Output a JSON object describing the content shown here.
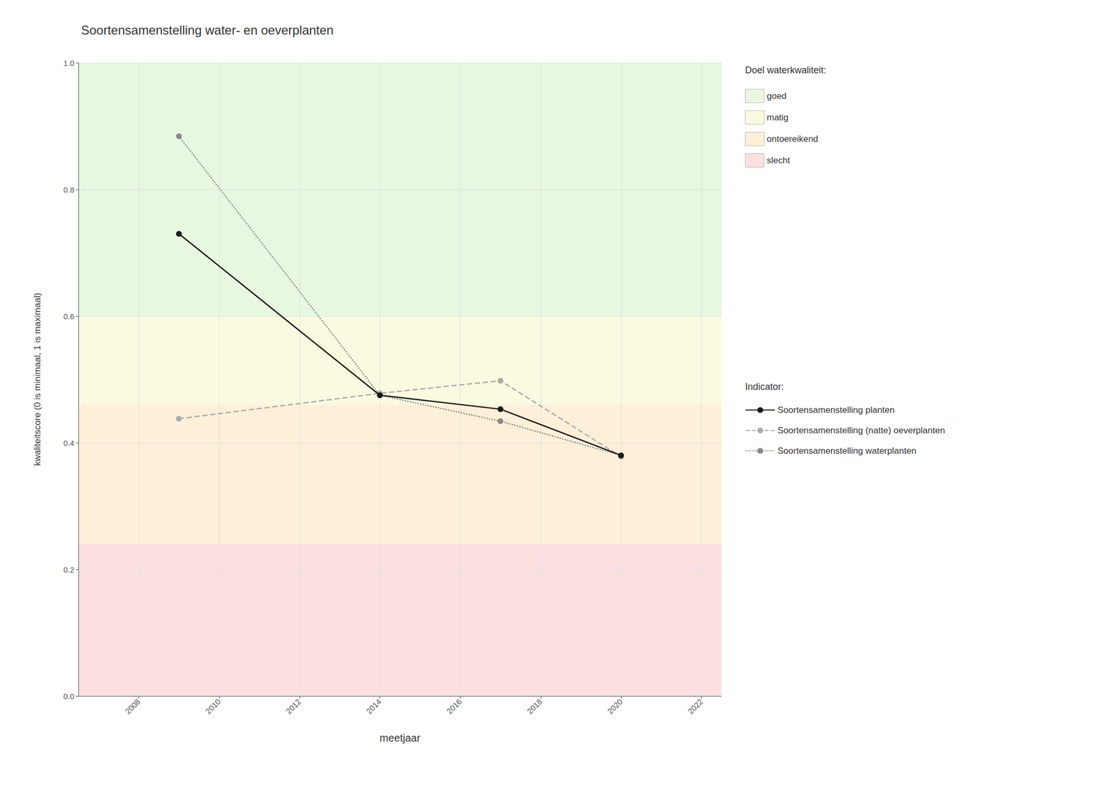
{
  "chart_data": {
    "type": "line",
    "title": "Soortensamenstelling water- en oeverplanten",
    "xlabel": "meetjaar",
    "ylabel": "kwaliteitscore (0 is minimaal, 1 is maximaal)",
    "x": [
      2009,
      2014,
      2017,
      2020
    ],
    "xlim": [
      2006.5,
      2022.5
    ],
    "xticks": [
      2008,
      2010,
      2012,
      2014,
      2016,
      2018,
      2020,
      2022
    ],
    "ylim": [
      0.0,
      1.0
    ],
    "yticks": [
      {
        "value": 0.0,
        "label": "0.0"
      },
      0.2,
      0.4,
      0.6,
      0.8,
      {
        "value": 1.0,
        "label": "1.0"
      }
    ],
    "grid": true,
    "legend": "right",
    "marker": "circle",
    "series": [
      {
        "name": "Soortensamenstelling planten",
        "color": "#1a1a1a",
        "line_style": "solid",
        "values": [
          0.73,
          0.475,
          0.453,
          0.38
        ]
      },
      {
        "name": "Soortensamenstelling (natte) oeverplanten",
        "color": "#aaaaaa",
        "line_style": "dashed",
        "values": [
          0.438,
          0.478,
          0.498,
          0.378
        ]
      },
      {
        "name": "Soortensamenstelling waterplanten",
        "color": "#888888",
        "line_style": "dotted",
        "values": [
          0.884,
          0.475,
          0.434,
          0.38
        ]
      }
    ],
    "bands_title": "Doel waterkwaliteit:",
    "bands": [
      {
        "name": "goed",
        "ymin": 0.6,
        "ymax": 1.0,
        "color": "#e8f8e0"
      },
      {
        "name": "matig",
        "ymin": 0.46,
        "ymax": 0.6,
        "color": "#fafae0"
      },
      {
        "name": "ontoereikend",
        "ymin": 0.24,
        "ymax": 0.46,
        "color": "#fef0d8"
      },
      {
        "name": "slecht",
        "ymin": 0.0,
        "ymax": 0.24,
        "color": "#fce0e0"
      }
    ],
    "series_title": "Indicator:"
  }
}
